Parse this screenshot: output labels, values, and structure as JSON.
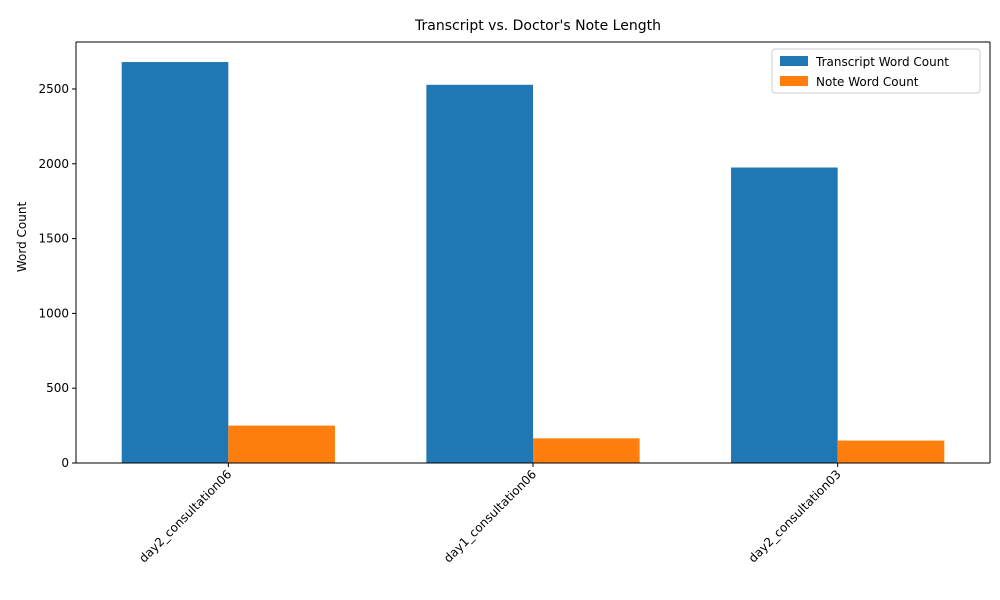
{
  "chart_data": {
    "type": "bar",
    "title": "Transcript vs. Doctor's Note Length",
    "xlabel": "",
    "ylabel": "Word Count",
    "categories": [
      "day2_consultation06",
      "day1_consultation06",
      "day2_consultation03"
    ],
    "series": [
      {
        "name": "Transcript Word Count",
        "values": [
          2680,
          2528,
          1975
        ],
        "color": "#1f77b4"
      },
      {
        "name": "Note Word Count",
        "values": [
          250,
          165,
          150
        ],
        "color": "#ff7f0e"
      }
    ],
    "ylim": [
      0,
      2814
    ],
    "yticks": [
      0,
      500,
      1000,
      1500,
      2000,
      2500
    ],
    "grid": false,
    "legend_position": "top-right"
  }
}
